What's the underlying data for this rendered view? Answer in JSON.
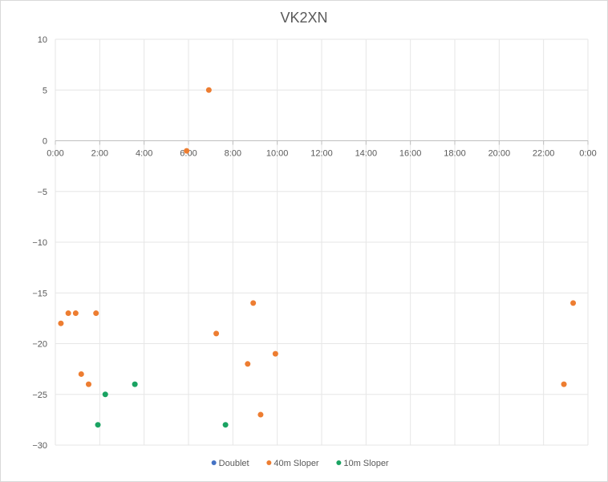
{
  "chart_data": {
    "type": "scatter",
    "title": "VK2XN",
    "xlabel": "",
    "ylabel": "",
    "x_unit": "time of day (hh:mm)",
    "xlim": [
      "0:00",
      "24:00"
    ],
    "ylim": [
      -30,
      10
    ],
    "x_ticks": [
      "0:00",
      "2:00",
      "4:00",
      "6:00",
      "8:00",
      "10:00",
      "12:00",
      "14:00",
      "16:00",
      "18:00",
      "20:00",
      "22:00",
      "0:00"
    ],
    "y_ticks": [
      10,
      5,
      0,
      -5,
      -10,
      -15,
      -20,
      -25,
      -30
    ],
    "grid": true,
    "legend_position": "bottom",
    "series": [
      {
        "name": "Doublet",
        "color": "#4472c4",
        "points": []
      },
      {
        "name": "40m Sloper",
        "color": "#ed7d31",
        "points": [
          {
            "x": "0:15",
            "y": -18
          },
          {
            "x": "0:35",
            "y": -17
          },
          {
            "x": "0:55",
            "y": -17
          },
          {
            "x": "1:10",
            "y": -23
          },
          {
            "x": "1:30",
            "y": -24
          },
          {
            "x": "1:50",
            "y": -17
          },
          {
            "x": "5:55",
            "y": -1
          },
          {
            "x": "6:55",
            "y": 5
          },
          {
            "x": "7:15",
            "y": -19
          },
          {
            "x": "8:40",
            "y": -22
          },
          {
            "x": "8:55",
            "y": -16
          },
          {
            "x": "9:15",
            "y": -27
          },
          {
            "x": "9:55",
            "y": -21
          },
          {
            "x": "22:55",
            "y": -24
          },
          {
            "x": "23:20",
            "y": -16
          }
        ]
      },
      {
        "name": "10m Sloper",
        "color": "#1aa362",
        "points": [
          {
            "x": "1:55",
            "y": -28
          },
          {
            "x": "2:15",
            "y": -25
          },
          {
            "x": "3:35",
            "y": -24
          },
          {
            "x": "7:40",
            "y": -28
          }
        ]
      }
    ]
  }
}
